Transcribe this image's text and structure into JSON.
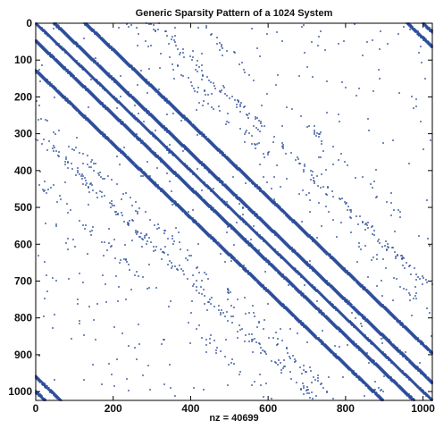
{
  "chart_data": {
    "type": "scatter",
    "title": "Generic Sparsity Pattern of a 1024 System",
    "xlabel": "nz = 40699",
    "ylabel": "",
    "xlim": [
      0,
      1024
    ],
    "ylim": [
      1024,
      0
    ],
    "xticks": [
      0,
      200,
      400,
      600,
      800,
      1000
    ],
    "yticks": [
      0,
      100,
      200,
      300,
      400,
      500,
      600,
      700,
      800,
      900,
      1000
    ],
    "y_axis_reversed": true,
    "grid": false,
    "legend": "none",
    "marker_color": "#2b4d9b",
    "matrix_size": 1024,
    "nonzero_count": 40699,
    "structure": {
      "main_band_offsets": [
        -2,
        0,
        2
      ],
      "dense_bands": [
        {
          "offset": 48,
          "lines": 3,
          "density": 0.95
        },
        {
          "offset": -48,
          "lines": 3,
          "density": 0.95
        },
        {
          "offset": 128,
          "lines": 3,
          "density": 0.9
        },
        {
          "offset": -128,
          "lines": 3,
          "density": 0.9
        }
      ],
      "sparse_bands": [
        {
          "offset": 300,
          "density": 0.25
        },
        {
          "offset": -300,
          "density": 0.25
        },
        {
          "offset": 240,
          "density": 0.12
        },
        {
          "offset": -240,
          "density": 0.12
        },
        {
          "offset": 420,
          "density": 0.08
        },
        {
          "offset": -420,
          "density": 0.08
        }
      ],
      "corner_bands": [
        {
          "offset": -1000,
          "density": 0.8
        },
        {
          "offset": -960,
          "density": 0.8
        },
        {
          "offset": 1000,
          "density": 0.8
        },
        {
          "offset": 960,
          "density": 0.8
        }
      ],
      "scattered_points": 420
    }
  }
}
